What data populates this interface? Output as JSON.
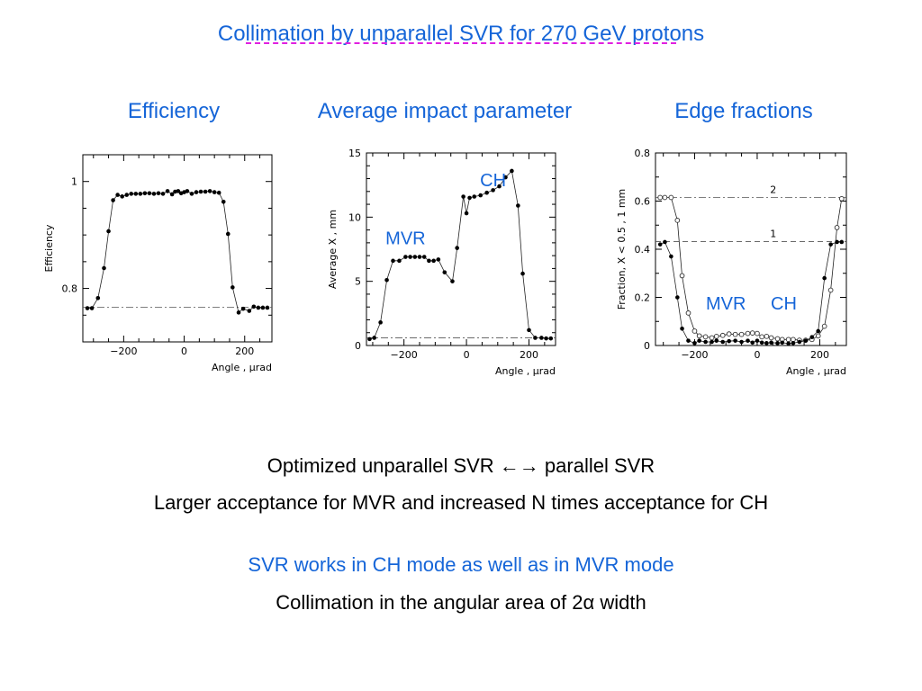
{
  "slide": {
    "title": "Collimation by unparallel SVR for 270 GeV protons",
    "panel_titles": [
      "Efficiency",
      "Average impact parameter",
      "Edge fractions"
    ],
    "lines": [
      "Optimized unparallel SVR ←→ parallel SVR",
      "Larger acceptance for MVR and increased N times acceptance for CH",
      "SVR works in CH mode as well as in MVR mode",
      "Collimation in the angular area of 2α width"
    ],
    "accent_color": "#1565d8",
    "dash_color": "#e020e0"
  },
  "chart_data": [
    {
      "type": "line",
      "ylabel": "Efficiency",
      "xlabel": "Angle , μrad",
      "xlim": [
        -335,
        290
      ],
      "ylim": [
        0.7,
        1.05
      ],
      "xticks": [
        -200,
        0,
        200
      ],
      "xtick_labels": [
        "−200",
        "0",
        "200"
      ],
      "yticks": [
        0.8,
        1
      ],
      "ytick_labels": [
        "0.8",
        "1"
      ],
      "grid": false,
      "annotations": [],
      "reference_lines": [
        {
          "y": 0.765,
          "style": "dashdot"
        }
      ],
      "series": [
        {
          "marker": "filled",
          "x": [
            -320,
            -305,
            -285,
            -265,
            -250,
            -235,
            -220,
            -205,
            -190,
            -175,
            -160,
            -145,
            -130,
            -115,
            -100,
            -85,
            -70,
            -55,
            -40,
            -30,
            -20,
            -10,
            0,
            10,
            25,
            40,
            55,
            70,
            85,
            100,
            115,
            130,
            145,
            160,
            180,
            195,
            215,
            230,
            245,
            260,
            275
          ],
          "y": [
            0.763,
            0.763,
            0.782,
            0.838,
            0.907,
            0.965,
            0.975,
            0.972,
            0.975,
            0.977,
            0.977,
            0.977,
            0.978,
            0.978,
            0.977,
            0.978,
            0.977,
            0.982,
            0.976,
            0.981,
            0.982,
            0.978,
            0.98,
            0.982,
            0.977,
            0.98,
            0.981,
            0.981,
            0.982,
            0.98,
            0.979,
            0.962,
            0.902,
            0.802,
            0.755,
            0.762,
            0.758,
            0.766,
            0.764,
            0.764,
            0.764
          ]
        }
      ]
    },
    {
      "type": "line",
      "ylabel": "Average X , mm",
      "xlabel": "Angle , μrad",
      "xlim": [
        -320,
        285
      ],
      "ylim": [
        0,
        15
      ],
      "xticks": [
        -200,
        0,
        200
      ],
      "xtick_labels": [
        "−200",
        "0",
        "200"
      ],
      "yticks": [
        0,
        5,
        10,
        15
      ],
      "ytick_labels": [
        "0",
        "5",
        "10",
        "15"
      ],
      "grid": false,
      "annotations": [
        {
          "text": "MVR",
          "x": -195,
          "y": 7.9
        },
        {
          "text": "CH",
          "x": 85,
          "y": 12.4
        }
      ],
      "reference_lines": [
        {
          "y": 0.6,
          "style": "dashdot"
        }
      ],
      "series": [
        {
          "marker": "filled",
          "x": [
            -310,
            -295,
            -275,
            -255,
            -235,
            -215,
            -195,
            -180,
            -165,
            -150,
            -135,
            -120,
            -105,
            -90,
            -70,
            -45,
            -30,
            -10,
            0,
            10,
            25,
            45,
            65,
            85,
            105,
            125,
            145,
            165,
            180,
            200,
            220,
            240,
            255,
            270
          ],
          "y": [
            0.5,
            0.6,
            1.8,
            5.1,
            6.6,
            6.6,
            6.9,
            6.9,
            6.9,
            6.9,
            6.9,
            6.6,
            6.6,
            6.7,
            5.7,
            5.0,
            7.6,
            11.6,
            10.3,
            11.5,
            11.6,
            11.7,
            11.9,
            12.1,
            12.4,
            13.1,
            13.6,
            10.9,
            5.6,
            1.2,
            0.6,
            0.6,
            0.55,
            0.55
          ]
        }
      ]
    },
    {
      "type": "line",
      "ylabel": "Fraction, X < 0.5 , 1 mm",
      "xlabel": "Angle , μrad",
      "xlim": [
        -325,
        285
      ],
      "ylim": [
        0,
        0.8
      ],
      "xticks": [
        -200,
        0,
        200
      ],
      "xtick_labels": [
        "−200",
        "0",
        "200"
      ],
      "yticks": [
        0,
        0.2,
        0.4,
        0.6,
        0.8
      ],
      "ytick_labels": [
        "0",
        "0.2",
        "0.4",
        "0.6",
        "0.8"
      ],
      "grid": false,
      "annotations": [
        {
          "text": "MVR",
          "x": -100,
          "y": 0.15
        },
        {
          "text": "CH",
          "x": 85,
          "y": 0.15
        }
      ],
      "reference_lines": [
        {
          "y": 0.615,
          "style": "dashdot",
          "label": "2"
        },
        {
          "y": 0.432,
          "style": "dashed",
          "label": "1"
        }
      ],
      "series": [
        {
          "marker": "open",
          "x": [
            -310,
            -295,
            -275,
            -255,
            -240,
            -220,
            -200,
            -185,
            -165,
            -145,
            -130,
            -110,
            -90,
            -70,
            -50,
            -30,
            -15,
            0,
            15,
            30,
            45,
            65,
            80,
            100,
            115,
            135,
            155,
            175,
            195,
            215,
            235,
            255,
            270
          ],
          "y": [
            0.615,
            0.615,
            0.615,
            0.52,
            0.29,
            0.135,
            0.06,
            0.04,
            0.036,
            0.032,
            0.038,
            0.042,
            0.048,
            0.046,
            0.046,
            0.05,
            0.052,
            0.05,
            0.036,
            0.038,
            0.032,
            0.028,
            0.025,
            0.025,
            0.025,
            0.022,
            0.022,
            0.025,
            0.04,
            0.08,
            0.23,
            0.49,
            0.61
          ]
        },
        {
          "marker": "filled",
          "x": [
            -310,
            -295,
            -275,
            -255,
            -240,
            -220,
            -200,
            -185,
            -165,
            -145,
            -130,
            -110,
            -90,
            -70,
            -50,
            -30,
            -15,
            0,
            15,
            30,
            45,
            65,
            80,
            100,
            115,
            135,
            155,
            175,
            195,
            215,
            235,
            255,
            270
          ],
          "y": [
            0.42,
            0.43,
            0.37,
            0.2,
            0.07,
            0.02,
            0.01,
            0.02,
            0.015,
            0.015,
            0.02,
            0.015,
            0.018,
            0.02,
            0.015,
            0.02,
            0.012,
            0.02,
            0.012,
            0.01,
            0.012,
            0.01,
            0.012,
            0.008,
            0.01,
            0.015,
            0.02,
            0.035,
            0.06,
            0.28,
            0.42,
            0.43,
            0.43
          ]
        }
      ]
    }
  ]
}
